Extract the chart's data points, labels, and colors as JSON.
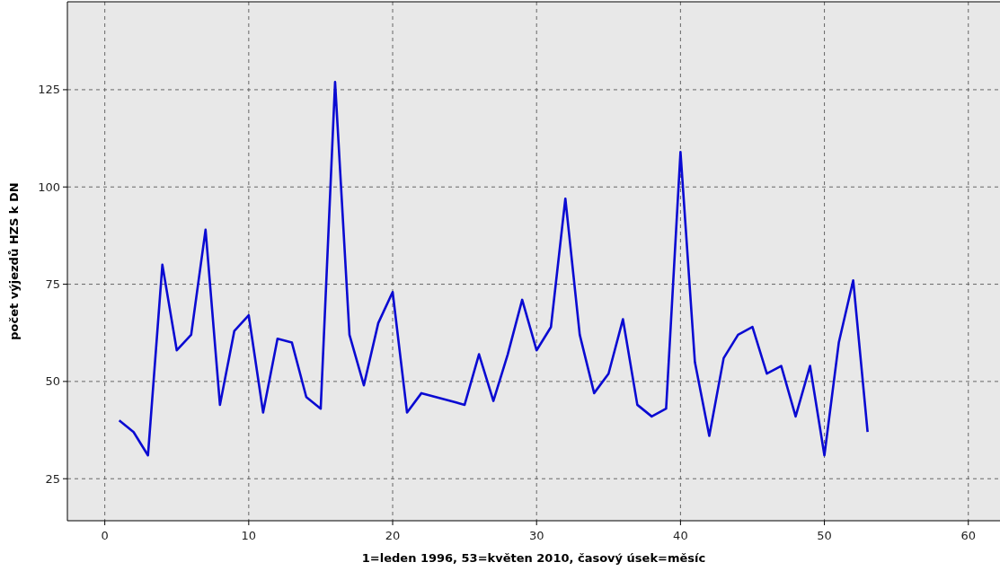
{
  "chart_data": {
    "type": "line",
    "xlabel": "1=leden 1996, 53=květen 2010, časový úsek=měsíc",
    "ylabel": "počet výjezdů HZS k DN",
    "x": [
      1,
      2,
      3,
      4,
      5,
      6,
      7,
      8,
      9,
      10,
      11,
      12,
      13,
      14,
      15,
      16,
      17,
      18,
      19,
      20,
      21,
      22,
      23,
      24,
      25,
      26,
      27,
      28,
      29,
      30,
      31,
      32,
      33,
      34,
      35,
      36,
      37,
      38,
      39,
      40,
      41,
      42,
      43,
      44,
      45,
      46,
      47,
      48,
      49,
      50,
      51,
      52,
      53
    ],
    "series": [
      {
        "color": "#0a0ad2",
        "values": [
          40,
          37,
          31,
          80,
          58,
          62,
          89,
          44,
          63,
          67,
          42,
          61,
          60,
          46,
          43,
          127,
          62,
          49,
          65,
          73,
          42,
          47,
          46,
          45,
          44,
          57,
          45,
          57,
          71,
          58,
          64,
          97,
          62,
          47,
          52,
          66,
          44,
          41,
          43,
          109,
          55,
          36,
          56,
          62,
          64,
          52,
          54,
          41,
          54,
          31,
          60,
          76,
          37
        ]
      }
    ],
    "xlim": [
      -2.6,
      62.2
    ],
    "ylim": [
      14.2,
      147.6
    ],
    "xticks": [
      0,
      10,
      20,
      30,
      40,
      50,
      60
    ],
    "yticks": [
      25,
      50,
      75,
      100,
      125
    ],
    "grid": true,
    "line_style": "solid",
    "marker": "none"
  }
}
